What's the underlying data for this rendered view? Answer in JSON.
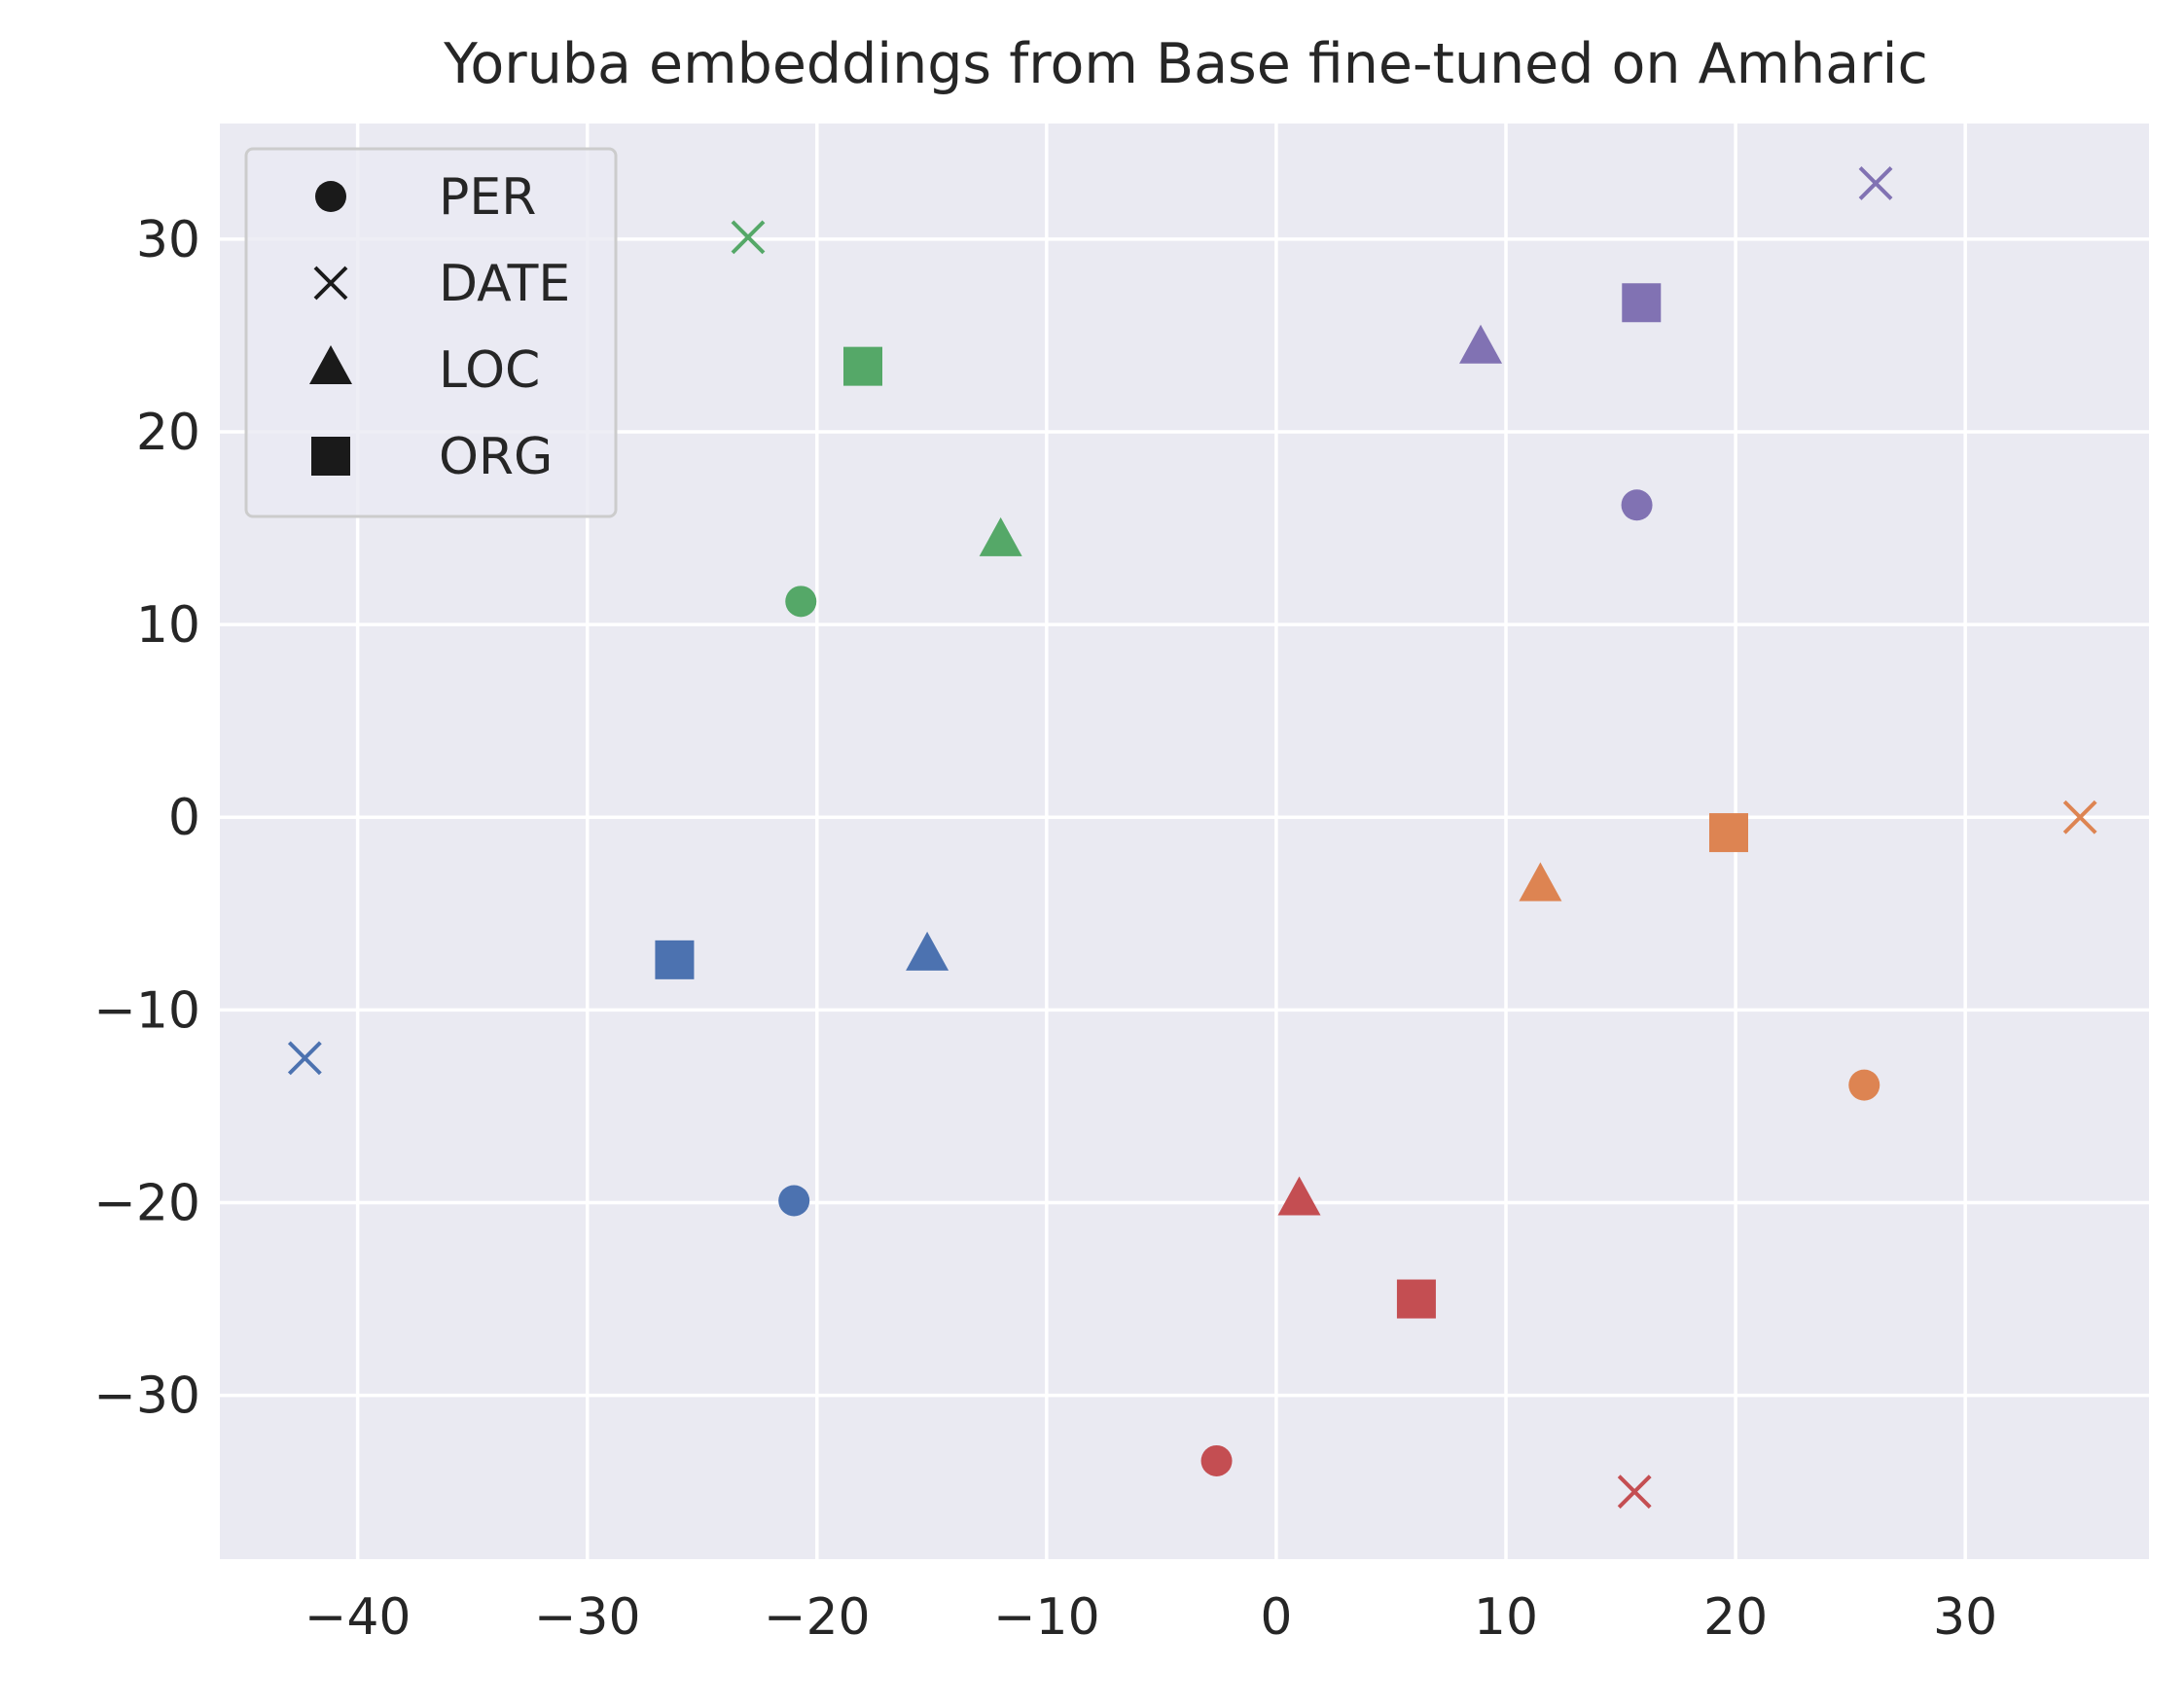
{
  "chart_data": {
    "type": "scatter",
    "title": "Yoruba embeddings from Base fine-tuned on Amharic",
    "xlabel": "",
    "ylabel": "",
    "xlim": [
      -46,
      38
    ],
    "ylim": [
      -38.5,
      36
    ],
    "xticks": [
      -40,
      -30,
      -20,
      -10,
      0,
      10,
      20,
      30
    ],
    "yticks": [
      -30,
      -20,
      -10,
      0,
      10,
      20,
      30
    ],
    "xtick_labels": [
      "−40",
      "−30",
      "−20",
      "−10",
      "0",
      "10",
      "20",
      "30"
    ],
    "ytick_labels": [
      "−30",
      "−20",
      "−10",
      "0",
      "10",
      "20",
      "30"
    ],
    "grid": true,
    "legend_position": "top-left",
    "legend": [
      {
        "label": "PER",
        "marker": "circle"
      },
      {
        "label": "DATE",
        "marker": "x"
      },
      {
        "label": "LOC",
        "marker": "triangle"
      },
      {
        "label": "ORG",
        "marker": "square"
      }
    ],
    "colors": {
      "blue": "#4c72b0",
      "orange": "#dd8452",
      "green": "#55a868",
      "red": "#c44e52",
      "purple": "#8172b3",
      "legend_marker": "#1a1a1a",
      "plot_background": "#eaeaf2",
      "grid": "#ffffff"
    },
    "points": [
      {
        "x": 15.7,
        "y": 16.2,
        "marker": "circle",
        "color": "purple"
      },
      {
        "x": 26.1,
        "y": 32.9,
        "marker": "x",
        "color": "purple"
      },
      {
        "x": 8.9,
        "y": 24.3,
        "marker": "triangle",
        "color": "purple"
      },
      {
        "x": 15.9,
        "y": 26.7,
        "marker": "square",
        "color": "purple"
      },
      {
        "x": -20.7,
        "y": 11.2,
        "marker": "circle",
        "color": "green"
      },
      {
        "x": -23.0,
        "y": 30.1,
        "marker": "x",
        "color": "green"
      },
      {
        "x": -12.0,
        "y": 14.3,
        "marker": "triangle",
        "color": "green"
      },
      {
        "x": -18.0,
        "y": 23.4,
        "marker": "square",
        "color": "green"
      },
      {
        "x": 25.6,
        "y": -13.9,
        "marker": "circle",
        "color": "orange"
      },
      {
        "x": 35.0,
        "y": 0.0,
        "marker": "x",
        "color": "orange"
      },
      {
        "x": 11.5,
        "y": -3.6,
        "marker": "triangle",
        "color": "orange"
      },
      {
        "x": 19.7,
        "y": -0.8,
        "marker": "square",
        "color": "orange"
      },
      {
        "x": -21.0,
        "y": -19.9,
        "marker": "circle",
        "color": "blue"
      },
      {
        "x": -42.3,
        "y": -12.5,
        "marker": "x",
        "color": "blue"
      },
      {
        "x": -15.2,
        "y": -7.2,
        "marker": "triangle",
        "color": "blue"
      },
      {
        "x": -26.2,
        "y": -7.4,
        "marker": "square",
        "color": "blue"
      },
      {
        "x": -2.6,
        "y": -33.4,
        "marker": "circle",
        "color": "red"
      },
      {
        "x": 15.6,
        "y": -35.0,
        "marker": "x",
        "color": "red"
      },
      {
        "x": 1.0,
        "y": -19.9,
        "marker": "triangle",
        "color": "red"
      },
      {
        "x": 6.1,
        "y": -25.0,
        "marker": "square",
        "color": "red"
      }
    ]
  }
}
